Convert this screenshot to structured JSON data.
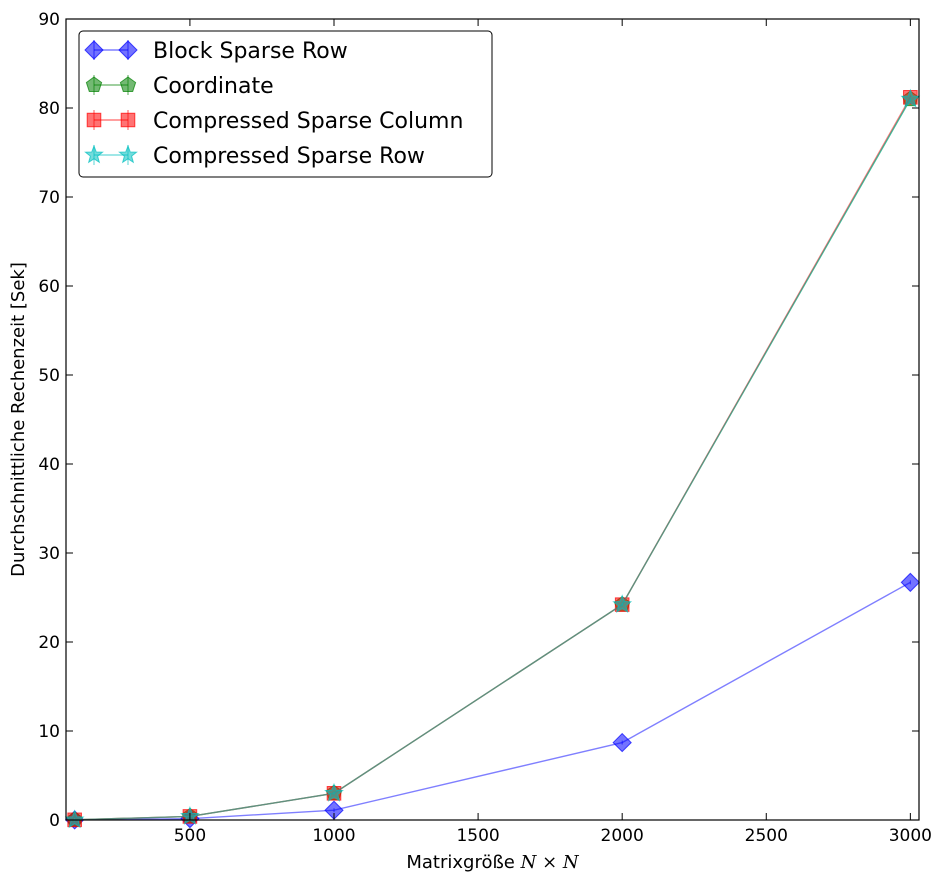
{
  "chart_data": {
    "type": "line",
    "xlabel": "Matrixgröße",
    "xlabel_math": "N × N",
    "ylabel": "Durchschnittliche Rechenzeit [Sek]",
    "xlim": [
      70,
      3030
    ],
    "ylim": [
      0,
      90
    ],
    "xticks": [
      500,
      1000,
      1500,
      2000,
      2500,
      3000
    ],
    "yticks": [
      0,
      10,
      20,
      30,
      40,
      50,
      60,
      70,
      80,
      90
    ],
    "grid": false,
    "legend_position": "top-left",
    "series": [
      {
        "name": "Block Sparse Row",
        "color": "#0000ff",
        "marker": "diamond",
        "x": [
          100,
          500,
          1000,
          2000,
          3000
        ],
        "y": [
          0.01,
          0.15,
          1.1,
          8.7,
          26.7
        ]
      },
      {
        "name": "Coordinate",
        "color": "#008000",
        "marker": "pentagon",
        "x": [
          100,
          500,
          1000,
          2000,
          3000
        ],
        "y": [
          0.02,
          0.4,
          3.0,
          24.2,
          81.0
        ]
      },
      {
        "name": "Compressed Sparse Column",
        "color": "#ff0000",
        "marker": "square",
        "x": [
          100,
          500,
          1000,
          2000,
          3000
        ],
        "y": [
          0.02,
          0.4,
          3.0,
          24.2,
          81.2
        ]
      },
      {
        "name": "Compressed Sparse Row",
        "color": "#00bfbf",
        "marker": "star",
        "x": [
          100,
          500,
          1000,
          2000,
          3000
        ],
        "y": [
          0.02,
          0.4,
          3.0,
          24.2,
          81.0
        ]
      }
    ]
  }
}
